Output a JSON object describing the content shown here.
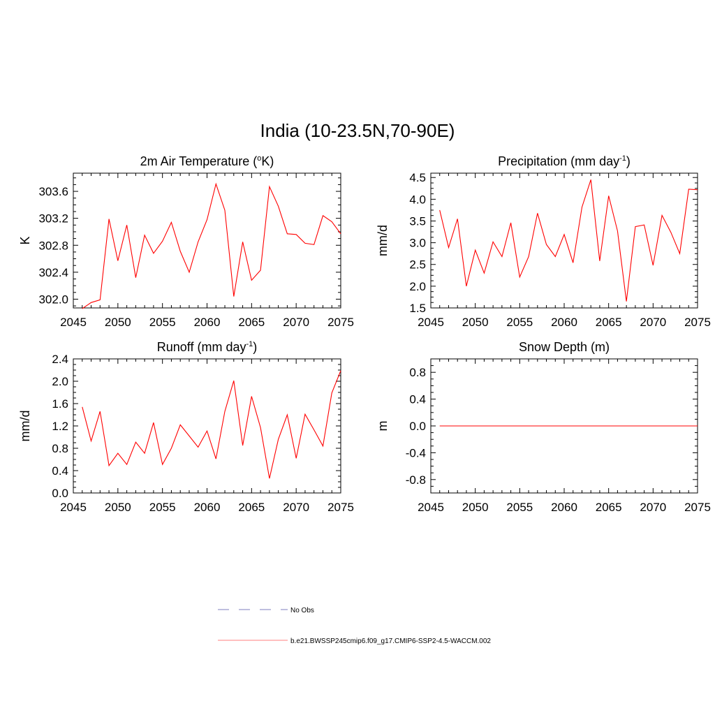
{
  "figure": {
    "title": "India (10-23.5N,70-90E)"
  },
  "colors": {
    "model_line": "#ff0000",
    "obs_line": "#9999cc",
    "axis": "#000000"
  },
  "chart_data": [
    {
      "type": "line",
      "title_main": "2m Air Temperature (",
      "title_sup": "o",
      "title_tail": "K)",
      "ylabel": "K",
      "xlim": [
        2045,
        2075
      ],
      "ylim": [
        301.87,
        303.87
      ],
      "xticks": [
        2045,
        2050,
        2055,
        2060,
        2065,
        2070,
        2075
      ],
      "yticks": [
        302.0,
        302.4,
        302.8,
        303.2,
        303.6
      ],
      "ytick_labels": [
        "302.0",
        "302.4",
        "302.8",
        "303.2",
        "303.6"
      ],
      "x": [
        2046,
        2047,
        2048,
        2049,
        2050,
        2051,
        2052,
        2053,
        2054,
        2055,
        2056,
        2057,
        2058,
        2059,
        2060,
        2061,
        2062,
        2063,
        2064,
        2065,
        2066,
        2067,
        2068,
        2069,
        2070,
        2071,
        2072,
        2073,
        2074,
        2075
      ],
      "series": [
        {
          "name": "b.e21.BWSSP245cmip6.f09_g17.CMIP6-SSP2-4.5-WACCM.002",
          "values": [
            301.86,
            301.95,
            301.99,
            303.19,
            302.57,
            303.1,
            302.32,
            302.95,
            302.68,
            302.86,
            303.14,
            302.71,
            302.4,
            302.85,
            303.18,
            303.71,
            303.32,
            302.04,
            302.85,
            302.28,
            302.43,
            303.67,
            303.38,
            302.97,
            302.96,
            302.83,
            302.81,
            303.24,
            303.15,
            302.97
          ]
        }
      ]
    },
    {
      "type": "line",
      "title_main": "Precipitation (mm day",
      "title_sup": "-1",
      "title_tail": ")",
      "ylabel": "mm/d",
      "xlim": [
        2045,
        2075
      ],
      "ylim": [
        1.5,
        4.6
      ],
      "xticks": [
        2045,
        2050,
        2055,
        2060,
        2065,
        2070,
        2075
      ],
      "yticks": [
        1.5,
        2.0,
        2.5,
        3.0,
        3.5,
        4.0,
        4.5
      ],
      "ytick_labels": [
        "1.5",
        "2.0",
        "2.5",
        "3.0",
        "3.5",
        "4.0",
        "4.5"
      ],
      "x": [
        2046,
        2047,
        2048,
        2049,
        2050,
        2051,
        2052,
        2053,
        2054,
        2055,
        2056,
        2057,
        2058,
        2059,
        2060,
        2061,
        2062,
        2063,
        2064,
        2065,
        2066,
        2067,
        2068,
        2069,
        2070,
        2071,
        2072,
        2073,
        2074,
        2075
      ],
      "series": [
        {
          "name": "b.e21.BWSSP245cmip6.f09_g17.CMIP6-SSP2-4.5-WACCM.002",
          "values": [
            3.75,
            2.89,
            3.55,
            2.0,
            2.83,
            2.3,
            3.02,
            2.68,
            3.46,
            2.21,
            2.68,
            3.68,
            2.96,
            2.68,
            3.19,
            2.54,
            3.82,
            4.45,
            2.58,
            4.08,
            3.27,
            1.65,
            3.37,
            3.41,
            2.48,
            3.63,
            3.24,
            2.75,
            4.23,
            4.22
          ]
        }
      ]
    },
    {
      "type": "line",
      "title_main": "Runoff (mm day",
      "title_sup": "-1",
      "title_tail": ")",
      "ylabel": "mm/d",
      "xlim": [
        2045,
        2075
      ],
      "ylim": [
        0.0,
        2.4
      ],
      "xticks": [
        2045,
        2050,
        2055,
        2060,
        2065,
        2070,
        2075
      ],
      "yticks": [
        0.0,
        0.4,
        0.8,
        1.2,
        1.6,
        2.0,
        2.4
      ],
      "ytick_labels": [
        "0.0",
        "0.4",
        "0.8",
        "1.2",
        "1.6",
        "2.0",
        "2.4"
      ],
      "x": [
        2046,
        2047,
        2048,
        2049,
        2050,
        2051,
        2052,
        2053,
        2054,
        2055,
        2056,
        2057,
        2058,
        2059,
        2060,
        2061,
        2062,
        2063,
        2064,
        2065,
        2066,
        2067,
        2068,
        2069,
        2070,
        2071,
        2072,
        2073,
        2074,
        2075
      ],
      "series": [
        {
          "name": "b.e21.BWSSP245cmip6.f09_g17.CMIP6-SSP2-4.5-WACCM.002",
          "values": [
            1.54,
            0.93,
            1.46,
            0.49,
            0.71,
            0.51,
            0.91,
            0.71,
            1.26,
            0.51,
            0.8,
            1.22,
            1.02,
            0.82,
            1.11,
            0.61,
            1.46,
            2.01,
            0.85,
            1.73,
            1.17,
            0.26,
            0.96,
            1.4,
            0.62,
            1.41,
            1.13,
            0.84,
            1.79,
            2.19
          ]
        }
      ]
    },
    {
      "type": "line",
      "title_main": "Snow Depth (m)",
      "title_sup": "",
      "title_tail": "",
      "ylabel": "m",
      "xlim": [
        2045,
        2075
      ],
      "ylim": [
        -1.0,
        1.0
      ],
      "xticks": [
        2045,
        2050,
        2055,
        2060,
        2065,
        2070,
        2075
      ],
      "yticks": [
        -0.8,
        -0.4,
        0.0,
        0.4,
        0.8
      ],
      "ytick_labels": [
        "-0.8",
        "-0.4",
        "0.0",
        "0.4",
        "0.8"
      ],
      "x": [
        2046,
        2047,
        2048,
        2049,
        2050,
        2051,
        2052,
        2053,
        2054,
        2055,
        2056,
        2057,
        2058,
        2059,
        2060,
        2061,
        2062,
        2063,
        2064,
        2065,
        2066,
        2067,
        2068,
        2069,
        2070,
        2071,
        2072,
        2073,
        2074,
        2075
      ],
      "series": [
        {
          "name": "b.e21.BWSSP245cmip6.f09_g17.CMIP6-SSP2-4.5-WACCM.002",
          "values": [
            0,
            0,
            0,
            0,
            0,
            0,
            0,
            0,
            0,
            0,
            0,
            0,
            0,
            0,
            0,
            0,
            0,
            0,
            0,
            0,
            0,
            0,
            0,
            0,
            0,
            0,
            0,
            0,
            0,
            0
          ]
        }
      ]
    }
  ],
  "legend": {
    "items": [
      {
        "label": "No Obs",
        "style": "dashed",
        "color": "#9999cc"
      },
      {
        "label": "b.e21.BWSSP245cmip6.f09_g17.CMIP6-SSP2-4.5-WACCM.002",
        "style": "solid",
        "color": "#ff9999"
      }
    ]
  }
}
